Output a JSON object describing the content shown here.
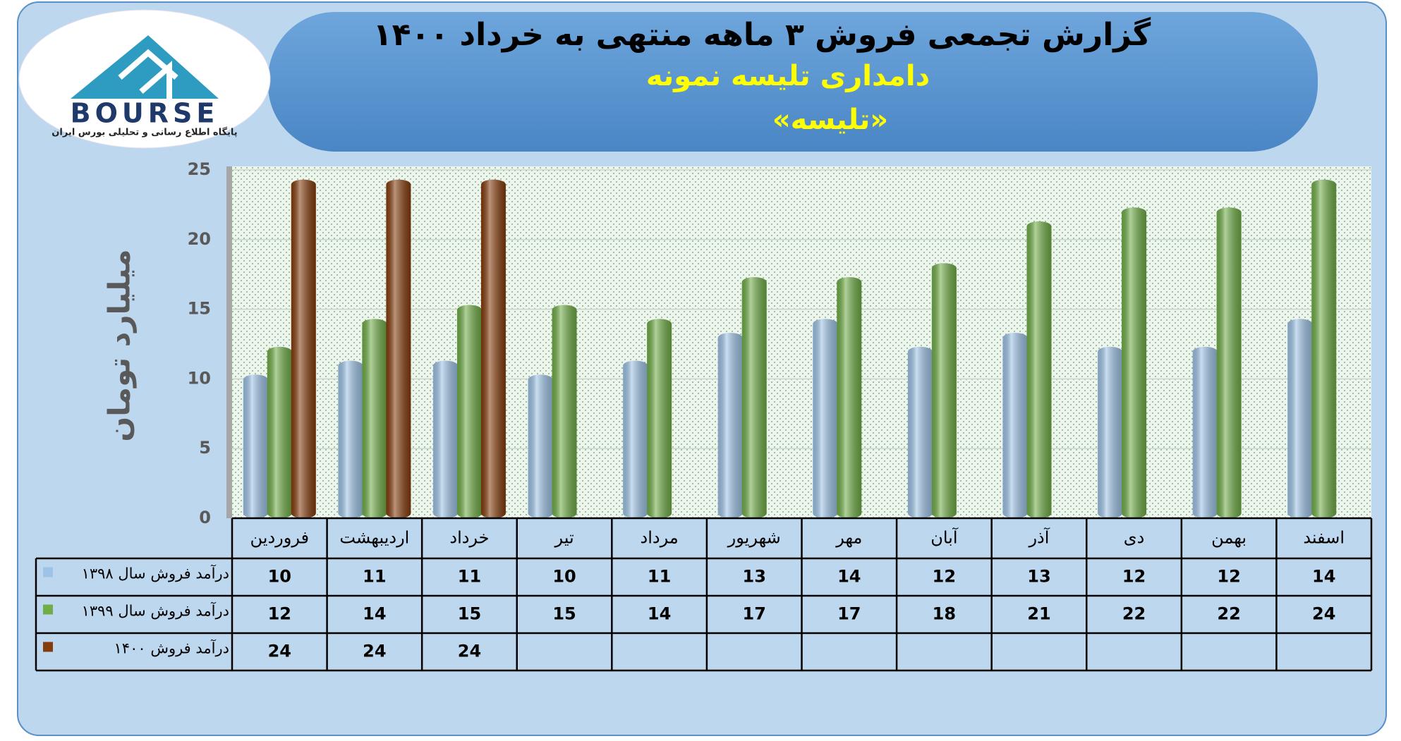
{
  "logo": {
    "name": "BOURSE",
    "tagline": "پایگاه اطلاع رسانی و تحلیلی بورس ایران"
  },
  "chart_data": {
    "type": "bar",
    "title": "گزارش تجمعی فروش ۳ ماهه منتهی به خرداد ۱۴۰۰",
    "subtitle": "دامداری تلیسه نمونه",
    "subtitle2": "«تلیسه»",
    "ylabel": "میلیارد تومان",
    "categories": [
      "فروردین",
      "اردیبهشت",
      "خرداد",
      "تیر",
      "مرداد",
      "شهریور",
      "مهر",
      "آبان",
      "آذر",
      "دی",
      "بهمن",
      "اسفند"
    ],
    "series": [
      {
        "name": "درآمد فروش سال ۱۳۹۸",
        "color": "#9dc3e6",
        "values": [
          10,
          11,
          11,
          10,
          11,
          13,
          14,
          12,
          13,
          12,
          12,
          14
        ]
      },
      {
        "name": "درآمد فروش سال ۱۳۹۹",
        "color": "#70ad47",
        "values": [
          12,
          14,
          15,
          15,
          14,
          17,
          17,
          18,
          21,
          22,
          22,
          24
        ]
      },
      {
        "name": "درآمد فروش ۱۴۰۰",
        "color": "#843c0c",
        "values": [
          24,
          24,
          24,
          null,
          null,
          null,
          null,
          null,
          null,
          null,
          null,
          null
        ]
      }
    ],
    "ylim": [
      0,
      25
    ],
    "yticks": [
      0,
      5,
      10,
      15,
      20,
      25
    ],
    "grid": true,
    "data_table": true
  }
}
